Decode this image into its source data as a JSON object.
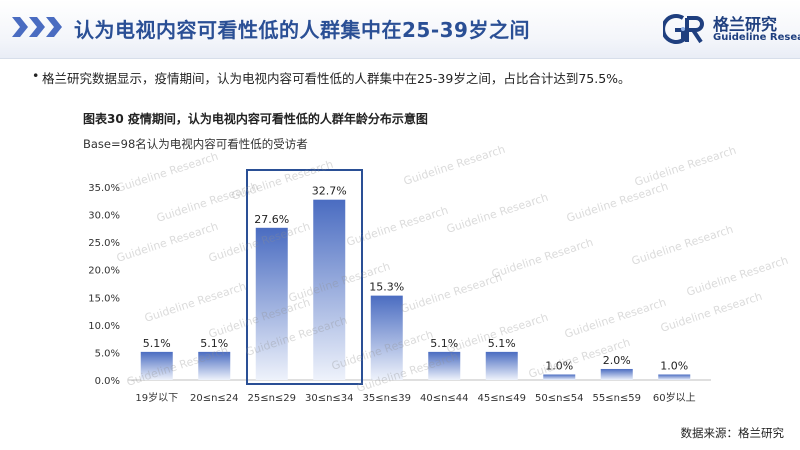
{
  "header": {
    "title": "认为电视内容可看性低的人群集中在25-39岁之间",
    "logo_cn": "格兰研究",
    "logo_en": "Guideline Research"
  },
  "bullet": "格兰研究数据显示，疫情期间，认为电视内容可看性低的人群集中在25-39岁之间，占比合计达到75.5%。",
  "chart_data": {
    "type": "bar",
    "title": "图表30  疫情期间，认为电视内容可看性低的人群年龄分布示意图",
    "subtitle": "Base=98名认为电视内容可看性低的受访者",
    "categories": [
      "19岁以下",
      "20≤n≤24",
      "25≤n≤29",
      "30≤n≤34",
      "35≤n≤39",
      "40≤n≤44",
      "45≤n≤49",
      "50≤n≤54",
      "55≤n≤59",
      "60岁以上"
    ],
    "values": [
      5.1,
      5.1,
      27.6,
      32.7,
      15.3,
      5.1,
      5.1,
      1.0,
      2.0,
      1.0
    ],
    "value_labels": [
      "5.1%",
      "5.1%",
      "27.6%",
      "32.7%",
      "15.3%",
      "5.1%",
      "5.1%",
      "1.0%",
      "2.0%",
      "1.0%"
    ],
    "ylim": [
      0,
      35
    ],
    "yticks": [
      "0.0%",
      "5.0%",
      "10.0%",
      "15.0%",
      "20.0%",
      "25.0%",
      "30.0%",
      "35.0%"
    ],
    "xlabel": "",
    "ylabel": "",
    "grid": false,
    "legend": "none",
    "highlight": [
      "25≤n≤29",
      "30≤n≤34"
    ],
    "colors": {
      "bar_top": "#4a6cc1",
      "bar_bottom": "#eef2fb",
      "highlight_box": "#2a4f95"
    }
  },
  "watermark": "Guideline Research",
  "source": "数据来源：格兰研究",
  "colors": {
    "accent": "#2a4f95",
    "header_bg": "#f3f5fa"
  }
}
